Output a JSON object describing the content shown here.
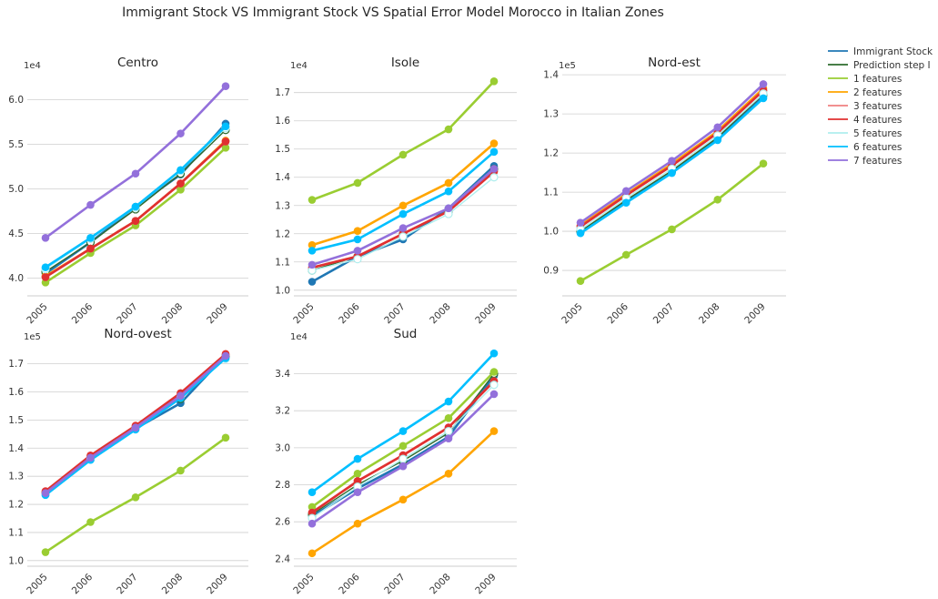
{
  "suptitle": "Immigrant Stock VS Immigrant Stock VS Spatial Error Model Morocco in Italian Zones",
  "legend": [
    {
      "label": "Immigrant Stock",
      "color": "#1f77b4"
    },
    {
      "label": "Prediction step I",
      "color": "#2e6b2e"
    },
    {
      "label": "1 features",
      "color": "#9acd32"
    },
    {
      "label": "2 features",
      "color": "#ffa500"
    },
    {
      "label": "3 features",
      "color": "#f08080"
    },
    {
      "label": "4 features",
      "color": "#e03030"
    },
    {
      "label": "5 features",
      "color": "#afeeee"
    },
    {
      "label": "6 features",
      "color": "#00bfff"
    },
    {
      "label": "7 features",
      "color": "#9370db"
    }
  ],
  "chart_data": [
    {
      "type": "line",
      "title": "Centro",
      "multiplier": "1e4",
      "x": [
        2005,
        2006,
        2007,
        2008,
        2009
      ],
      "ylim": [
        3.8,
        6.3
      ],
      "yticks": [
        4.0,
        4.5,
        5.0,
        5.5,
        6.0
      ],
      "grid": "horizontal",
      "series": [
        {
          "name": "Immigrant Stock",
          "values": [
            4.05,
            4.4,
            4.8,
            5.16,
            5.73
          ]
        },
        {
          "name": "Prediction step I",
          "values": [
            4.07,
            4.4,
            4.77,
            5.17,
            5.66
          ]
        },
        {
          "name": "1 features",
          "values": [
            3.95,
            4.28,
            4.59,
            4.99,
            5.46
          ]
        },
        {
          "name": "2 features",
          "values": [
            4.02,
            4.33,
            4.64,
            5.06,
            5.54
          ]
        },
        {
          "name": "3 features",
          "values": [
            4.01,
            4.33,
            4.64,
            5.06,
            5.53
          ]
        },
        {
          "name": "4 features",
          "values": [
            4.01,
            4.33,
            4.64,
            5.06,
            5.53
          ]
        },
        {
          "name": "5 features",
          "values": [
            4.1,
            4.44,
            4.79,
            5.2,
            5.68
          ]
        },
        {
          "name": "6 features",
          "values": [
            4.12,
            4.45,
            4.8,
            5.21,
            5.7
          ]
        },
        {
          "name": "7 features",
          "values": [
            4.45,
            4.82,
            5.17,
            5.62,
            6.15
          ]
        }
      ]
    },
    {
      "type": "line",
      "title": "Isole",
      "multiplier": "1e4",
      "x": [
        2005,
        2006,
        2007,
        2008,
        2009
      ],
      "ylim": [
        0.98,
        1.77
      ],
      "yticks": [
        1.0,
        1.1,
        1.2,
        1.3,
        1.4,
        1.5,
        1.6,
        1.7
      ],
      "grid": "horizontal",
      "series": [
        {
          "name": "Immigrant Stock",
          "values": [
            1.03,
            1.12,
            1.18,
            1.29,
            1.44
          ]
        },
        {
          "name": "Prediction step I",
          "values": [
            1.07,
            1.12,
            1.2,
            1.28,
            1.43
          ]
        },
        {
          "name": "1 features",
          "values": [
            1.32,
            1.38,
            1.48,
            1.57,
            1.74
          ]
        },
        {
          "name": "2 features",
          "values": [
            1.16,
            1.21,
            1.3,
            1.38,
            1.52
          ]
        },
        {
          "name": "3 features",
          "values": [
            1.08,
            1.12,
            1.2,
            1.28,
            1.42
          ]
        },
        {
          "name": "4 features",
          "values": [
            1.08,
            1.12,
            1.2,
            1.28,
            1.42
          ]
        },
        {
          "name": "5 features",
          "values": [
            1.07,
            1.11,
            1.19,
            1.27,
            1.4
          ]
        },
        {
          "name": "6 features",
          "values": [
            1.14,
            1.18,
            1.27,
            1.35,
            1.49
          ]
        },
        {
          "name": "7 features",
          "values": [
            1.09,
            1.14,
            1.22,
            1.29,
            1.43
          ]
        }
      ]
    },
    {
      "type": "line",
      "title": "Nord-est",
      "multiplier": "1e5",
      "x": [
        2005,
        2006,
        2007,
        2008,
        2009
      ],
      "ylim": [
        0.835,
        1.405
      ],
      "yticks": [
        0.9,
        1.0,
        1.1,
        1.2,
        1.3,
        1.4
      ],
      "grid": "horizontal",
      "series": [
        {
          "name": "Immigrant Stock",
          "values": [
            0.997,
            1.075,
            1.15,
            1.236,
            1.345
          ]
        },
        {
          "name": "Prediction step I",
          "values": [
            1.0,
            1.08,
            1.155,
            1.24,
            1.35
          ]
        },
        {
          "name": "1 features",
          "values": [
            0.873,
            0.94,
            1.005,
            1.081,
            1.173
          ]
        },
        {
          "name": "2 features",
          "values": [
            1.015,
            1.095,
            1.172,
            1.256,
            1.365
          ]
        },
        {
          "name": "3 features",
          "values": [
            1.012,
            1.092,
            1.168,
            1.252,
            1.36
          ]
        },
        {
          "name": "4 features",
          "values": [
            1.012,
            1.092,
            1.168,
            1.252,
            1.36
          ]
        },
        {
          "name": "5 features",
          "values": [
            1.005,
            1.085,
            1.16,
            1.245,
            1.352
          ]
        },
        {
          "name": "6 features",
          "values": [
            0.995,
            1.073,
            1.149,
            1.233,
            1.34
          ]
        },
        {
          "name": "7 features",
          "values": [
            1.022,
            1.103,
            1.18,
            1.266,
            1.376
          ]
        }
      ]
    },
    {
      "type": "line",
      "title": "Nord-ovest",
      "multiplier": "1e5",
      "x": [
        2005,
        2006,
        2007,
        2008,
        2009
      ],
      "ylim": [
        0.98,
        1.77
      ],
      "yticks": [
        1.0,
        1.1,
        1.2,
        1.3,
        1.4,
        1.5,
        1.6,
        1.7
      ],
      "grid": "horizontal",
      "series": [
        {
          "name": "Immigrant Stock",
          "values": [
            1.235,
            1.36,
            1.47,
            1.56,
            1.73
          ]
        },
        {
          "name": "Prediction step I",
          "values": [
            1.24,
            1.365,
            1.472,
            1.575,
            1.725
          ]
        },
        {
          "name": "1 features",
          "values": [
            1.03,
            1.137,
            1.225,
            1.32,
            1.437
          ]
        },
        {
          "name": "2 features",
          "values": [
            1.245,
            1.372,
            1.478,
            1.592,
            1.732
          ]
        },
        {
          "name": "3 features",
          "values": [
            1.243,
            1.37,
            1.476,
            1.59,
            1.73
          ]
        },
        {
          "name": "4 features",
          "values": [
            1.247,
            1.374,
            1.48,
            1.596,
            1.735
          ]
        },
        {
          "name": "5 features",
          "values": [
            1.235,
            1.36,
            1.468,
            1.58,
            1.718
          ]
        },
        {
          "name": "6 features",
          "values": [
            1.233,
            1.358,
            1.466,
            1.578,
            1.72
          ]
        },
        {
          "name": "7 features",
          "values": [
            1.24,
            1.366,
            1.473,
            1.586,
            1.728
          ]
        }
      ]
    },
    {
      "type": "line",
      "title": "Sud",
      "multiplier": "1e4",
      "x": [
        2005,
        2006,
        2007,
        2008,
        2009
      ],
      "ylim": [
        2.36,
        3.56
      ],
      "yticks": [
        2.4,
        2.6,
        2.8,
        3.0,
        3.2,
        3.4
      ],
      "grid": "horizontal",
      "series": [
        {
          "name": "Immigrant Stock",
          "values": [
            2.63,
            2.78,
            2.91,
            3.06,
            3.39
          ]
        },
        {
          "name": "Prediction step I",
          "values": [
            2.64,
            2.8,
            2.93,
            3.08,
            3.4
          ]
        },
        {
          "name": "1 features",
          "values": [
            2.68,
            2.86,
            3.01,
            3.16,
            3.41
          ]
        },
        {
          "name": "2 features",
          "values": [
            2.43,
            2.59,
            2.72,
            2.86,
            3.09
          ]
        },
        {
          "name": "3 features",
          "values": [
            2.65,
            2.82,
            2.96,
            3.11,
            3.36
          ]
        },
        {
          "name": "4 features",
          "values": [
            2.65,
            2.82,
            2.96,
            3.11,
            3.36
          ]
        },
        {
          "name": "5 features",
          "values": [
            2.62,
            2.79,
            2.94,
            3.09,
            3.34
          ]
        },
        {
          "name": "6 features",
          "values": [
            2.76,
            2.94,
            3.09,
            3.25,
            3.51
          ]
        },
        {
          "name": "7 features",
          "values": [
            2.59,
            2.76,
            2.9,
            3.05,
            3.29
          ]
        }
      ]
    }
  ]
}
